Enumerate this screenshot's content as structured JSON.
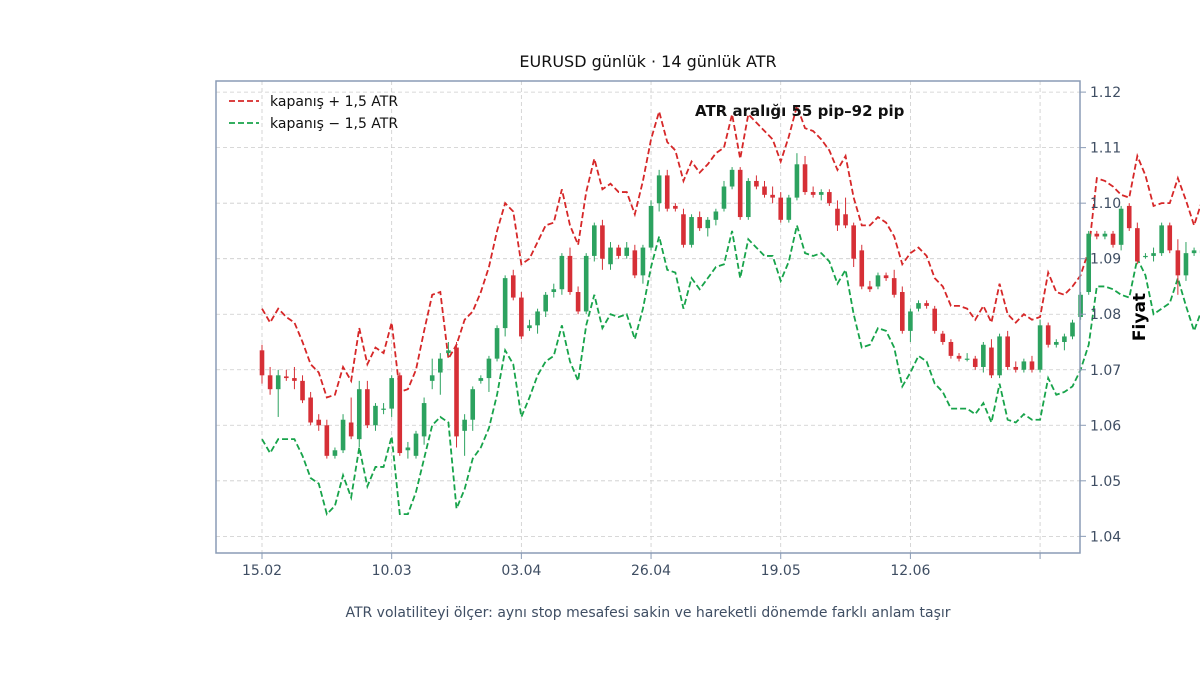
{
  "chart_data": {
    "type": "candlestick",
    "title": "EURUSD günlük · 14 günlük ATR",
    "ylabel": "Fiyat",
    "xlabel": "",
    "footnote": "ATR volatiliteyi ölçer: aynı stop mesafesi sakin ve hareketli dönemde farklı anlam taşır",
    "annotation": "ATR aralığı 55 pip–92 pip",
    "y_axis_position": "right",
    "ylim": [
      1.037,
      1.122
    ],
    "yticks": [
      1.04,
      1.05,
      1.06,
      1.07,
      1.08,
      1.09,
      1.1,
      1.11,
      1.12
    ],
    "ytick_labels": [
      "1.04",
      "1.05",
      "1.06",
      "1.07",
      "1.08",
      "1.09",
      "1.10",
      "1.11",
      "1.12"
    ],
    "xtick_indices": [
      0,
      16,
      32,
      48,
      64,
      80,
      96
    ],
    "xtick_labels": [
      "15.02",
      "10.03",
      "03.04",
      "26.04",
      "19.05",
      "12.06",
      ""
    ],
    "grid": true,
    "legend_position": "top-left",
    "colors": {
      "up": "#2ca25f",
      "down": "#d62f36",
      "upper": "#d62728",
      "lower": "#17a34a",
      "frame": "#8a9bb5"
    },
    "series": [
      {
        "name": "kapanış + 1,5 ATR",
        "color": "#d62728",
        "style": "dashed",
        "key": "upper"
      },
      {
        "name": "kapanış − 1,5 ATR",
        "color": "#17a34a",
        "style": "dashed",
        "key": "lower"
      }
    ],
    "ohlc": [
      [
        1.0735,
        1.0745,
        1.0675,
        1.069
      ],
      [
        1.069,
        1.0705,
        1.0655,
        1.0665
      ],
      [
        1.0665,
        1.07,
        1.0615,
        1.069
      ],
      [
        1.0688,
        1.07,
        1.068,
        1.0685
      ],
      [
        1.0685,
        1.0705,
        1.0665,
        1.068
      ],
      [
        1.068,
        1.069,
        1.064,
        1.0645
      ],
      [
        1.065,
        1.066,
        1.06,
        1.0605
      ],
      [
        1.061,
        1.062,
        1.059,
        1.06
      ],
      [
        1.06,
        1.061,
        1.054,
        1.0545
      ],
      [
        1.0545,
        1.056,
        1.054,
        1.0555
      ],
      [
        1.0555,
        1.062,
        1.055,
        1.061
      ],
      [
        1.0605,
        1.065,
        1.0575,
        1.058
      ],
      [
        1.0575,
        1.068,
        1.056,
        1.0665
      ],
      [
        1.0665,
        1.068,
        1.0595,
        1.06
      ],
      [
        1.06,
        1.064,
        1.059,
        1.0635
      ],
      [
        1.063,
        1.064,
        1.062,
        1.063
      ],
      [
        1.063,
        1.069,
        1.0615,
        1.0685
      ],
      [
        1.069,
        1.0695,
        1.0545,
        1.055
      ],
      [
        1.0555,
        1.057,
        1.054,
        1.056
      ],
      [
        1.0545,
        1.059,
        1.054,
        1.0585
      ],
      [
        1.058,
        1.065,
        1.0565,
        1.064
      ],
      [
        1.068,
        1.072,
        1.0665,
        1.069
      ],
      [
        1.0695,
        1.073,
        1.0655,
        1.072
      ],
      [
        1.073,
        1.075,
        1.0725,
        1.0735
      ],
      [
        1.074,
        1.075,
        1.056,
        1.058
      ],
      [
        1.059,
        1.062,
        1.0545,
        1.061
      ],
      [
        1.061,
        1.067,
        1.059,
        1.0665
      ],
      [
        1.068,
        1.069,
        1.0675,
        1.0685
      ],
      [
        1.0685,
        1.0725,
        1.066,
        1.072
      ],
      [
        1.072,
        1.078,
        1.0715,
        1.0775
      ],
      [
        1.0775,
        1.087,
        1.076,
        1.0865
      ],
      [
        1.087,
        1.088,
        1.0825,
        1.083
      ],
      [
        1.083,
        1.084,
        1.0755,
        1.076
      ],
      [
        1.0775,
        1.079,
        1.077,
        1.078
      ],
      [
        1.078,
        1.081,
        1.0765,
        1.0805
      ],
      [
        1.0805,
        1.084,
        1.0795,
        1.0835
      ],
      [
        1.084,
        1.0855,
        1.083,
        1.0845
      ],
      [
        1.0845,
        1.091,
        1.0835,
        1.0905
      ],
      [
        1.0905,
        1.092,
        1.0835,
        1.084
      ],
      [
        1.084,
        1.085,
        1.08,
        1.0805
      ],
      [
        1.0805,
        1.091,
        1.08,
        1.0905
      ],
      [
        1.0905,
        1.0965,
        1.0895,
        1.096
      ],
      [
        1.096,
        1.097,
        1.088,
        1.09
      ],
      [
        1.089,
        1.093,
        1.088,
        1.092
      ],
      [
        1.092,
        1.0925,
        1.09,
        1.0905
      ],
      [
        1.0905,
        1.093,
        1.09,
        1.092
      ],
      [
        1.0915,
        1.0925,
        1.0865,
        1.087
      ],
      [
        1.087,
        1.0925,
        1.0855,
        1.092
      ],
      [
        1.092,
        1.1005,
        1.0915,
        1.0995
      ],
      [
        1.1,
        1.106,
        1.0985,
        1.105
      ],
      [
        1.105,
        1.106,
        1.0985,
        1.099
      ],
      [
        1.0995,
        1.1,
        1.0985,
        1.099
      ],
      [
        1.098,
        1.099,
        1.092,
        1.0925
      ],
      [
        1.0925,
        1.098,
        1.092,
        1.0975
      ],
      [
        1.0975,
        1.0985,
        1.095,
        1.0955
      ],
      [
        1.0955,
        1.0975,
        1.094,
        1.097
      ],
      [
        1.097,
        1.099,
        1.096,
        1.0985
      ],
      [
        1.099,
        1.104,
        1.0985,
        1.103
      ],
      [
        1.103,
        1.1065,
        1.1025,
        1.106
      ],
      [
        1.106,
        1.1065,
        1.097,
        1.0975
      ],
      [
        1.0975,
        1.1045,
        1.097,
        1.104
      ],
      [
        1.104,
        1.105,
        1.1025,
        1.103
      ],
      [
        1.103,
        1.104,
        1.101,
        1.1015
      ],
      [
        1.1015,
        1.103,
        1.1,
        1.101
      ],
      [
        1.101,
        1.102,
        1.0965,
        1.097
      ],
      [
        1.097,
        1.1015,
        1.0965,
        1.101
      ],
      [
        1.101,
        1.109,
        1.1005,
        1.107
      ],
      [
        1.107,
        1.1085,
        1.1015,
        1.102
      ],
      [
        1.102,
        1.103,
        1.101,
        1.1015
      ],
      [
        1.1015,
        1.1025,
        1.1005,
        1.102
      ],
      [
        1.102,
        1.1025,
        1.0995,
        1.1
      ],
      [
        1.099,
        1.1005,
        1.095,
        1.096
      ],
      [
        1.098,
        1.101,
        1.0955,
        1.096
      ],
      [
        1.096,
        1.0965,
        1.0885,
        1.09
      ],
      [
        1.0915,
        1.0925,
        1.0845,
        1.085
      ],
      [
        1.085,
        1.086,
        1.084,
        1.0845
      ],
      [
        1.085,
        1.0875,
        1.0845,
        1.087
      ],
      [
        1.087,
        1.0875,
        1.086,
        1.0865
      ],
      [
        1.0865,
        1.088,
        1.083,
        1.0835
      ],
      [
        1.084,
        1.085,
        1.0765,
        1.077
      ],
      [
        1.077,
        1.081,
        1.075,
        1.0805
      ],
      [
        1.081,
        1.0825,
        1.0805,
        1.082
      ],
      [
        1.082,
        1.0825,
        1.081,
        1.0815
      ],
      [
        1.081,
        1.0815,
        1.0765,
        1.077
      ],
      [
        1.0765,
        1.077,
        1.0745,
        1.075
      ],
      [
        1.075,
        1.0755,
        1.072,
        1.0725
      ],
      [
        1.0725,
        1.073,
        1.0715,
        1.072
      ],
      [
        1.072,
        1.073,
        1.0715,
        1.072
      ],
      [
        1.072,
        1.0725,
        1.07,
        1.0705
      ],
      [
        1.0705,
        1.075,
        1.0695,
        1.0745
      ],
      [
        1.074,
        1.0755,
        1.0685,
        1.069
      ],
      [
        1.069,
        1.0765,
        1.0685,
        1.076
      ],
      [
        1.076,
        1.077,
        1.07,
        1.0705
      ],
      [
        1.0705,
        1.0715,
        1.0695,
        1.07
      ],
      [
        1.07,
        1.072,
        1.0695,
        1.0715
      ],
      [
        1.0715,
        1.0725,
        1.0695,
        1.07
      ],
      [
        1.07,
        1.079,
        1.0695,
        1.078
      ],
      [
        1.078,
        1.0785,
        1.074,
        1.0745
      ],
      [
        1.0745,
        1.0755,
        1.074,
        1.075
      ],
      [
        1.075,
        1.0765,
        1.0735,
        1.076
      ],
      [
        1.076,
        1.079,
        1.0755,
        1.0785
      ],
      [
        1.0795,
        1.084,
        1.079,
        1.0835
      ],
      [
        1.084,
        1.095,
        1.0835,
        1.0945
      ],
      [
        1.0945,
        1.095,
        1.0935,
        1.094
      ],
      [
        1.094,
        1.095,
        1.0935,
        1.0945
      ],
      [
        1.0945,
        1.095,
        1.092,
        1.0925
      ],
      [
        1.0925,
        1.0995,
        1.0915,
        1.099
      ],
      [
        1.0995,
        1.1,
        1.095,
        1.0955
      ],
      [
        1.0955,
        1.0965,
        1.089,
        1.0895
      ],
      [
        1.0905,
        1.091,
        1.09,
        1.0905
      ],
      [
        1.0905,
        1.092,
        1.0895,
        1.091
      ],
      [
        1.091,
        1.0965,
        1.0905,
        1.096
      ],
      [
        1.096,
        1.0965,
        1.091,
        1.0915
      ],
      [
        1.0915,
        1.0935,
        1.0835,
        1.087
      ],
      [
        1.087,
        1.093,
        1.086,
        1.091
      ],
      [
        1.091,
        1.092,
        1.0905,
        1.0915
      ],
      [
        1.091,
        1.0935,
        1.0905,
        1.0915
      ],
      [
        1.0915,
        1.092,
        1.088,
        1.0885
      ]
    ],
    "upper": [
      1.081,
      1.0785,
      1.081,
      1.0795,
      1.0785,
      1.075,
      1.071,
      1.0695,
      1.065,
      1.0655,
      1.0705,
      1.068,
      1.0775,
      1.071,
      1.074,
      1.073,
      1.0785,
      1.066,
      1.0665,
      1.07,
      1.077,
      1.0835,
      1.084,
      1.072,
      1.0745,
      1.079,
      1.0805,
      1.084,
      1.0885,
      1.095,
      1.1,
      1.0985,
      1.089,
      1.09,
      1.093,
      1.096,
      1.0965,
      1.1025,
      1.096,
      1.0925,
      1.102,
      1.108,
      1.1025,
      1.1035,
      1.102,
      1.102,
      1.098,
      1.104,
      1.1115,
      1.1165,
      1.111,
      1.1095,
      1.104,
      1.1075,
      1.1055,
      1.107,
      1.109,
      1.11,
      1.116,
      1.108,
      1.116,
      1.1145,
      1.113,
      1.1115,
      1.1075,
      1.112,
      1.1175,
      1.1135,
      1.113,
      1.1115,
      1.1095,
      1.106,
      1.1085,
      1.101,
      1.096,
      1.096,
      1.0975,
      1.0965,
      1.094,
      1.089,
      1.091,
      1.092,
      1.0905,
      1.0865,
      1.085,
      1.0815,
      1.0815,
      1.081,
      1.079,
      1.0815,
      1.0785,
      1.0855,
      1.08,
      1.0785,
      1.08,
      1.079,
      1.0795,
      1.0875,
      1.084,
      1.0835,
      1.085,
      1.087,
      1.0915,
      1.1045,
      1.104,
      1.103,
      1.1015,
      1.101,
      1.1085,
      1.105,
      1.0995,
      1.1,
      1.1,
      1.1045,
      1.1005,
      1.096,
      1.1005,
      1.1,
      1.1005,
      1.0975
    ],
    "lower": [
      1.0575,
      1.055,
      1.0575,
      1.0575,
      1.0575,
      1.0545,
      1.0505,
      1.0495,
      1.044,
      1.0455,
      1.051,
      1.047,
      1.056,
      1.049,
      1.0525,
      1.0525,
      1.058,
      1.044,
      1.044,
      1.048,
      1.054,
      1.06,
      1.0615,
      1.0605,
      1.045,
      1.0485,
      1.054,
      1.056,
      1.0595,
      1.0655,
      1.0735,
      1.071,
      1.0615,
      1.065,
      1.069,
      1.0715,
      1.0725,
      1.078,
      1.0715,
      1.068,
      1.078,
      1.0835,
      1.0775,
      1.08,
      1.0795,
      1.08,
      1.0755,
      1.081,
      1.0885,
      1.094,
      1.088,
      1.0875,
      1.081,
      1.0865,
      1.0845,
      1.0865,
      1.0885,
      1.089,
      1.095,
      1.0865,
      1.0935,
      1.092,
      1.0905,
      1.0905,
      1.086,
      1.0895,
      1.096,
      1.091,
      1.0905,
      1.091,
      1.0895,
      1.0855,
      1.088,
      1.08,
      1.074,
      1.0745,
      1.0775,
      1.077,
      1.074,
      1.067,
      1.0695,
      1.0725,
      1.0715,
      1.0675,
      1.066,
      1.063,
      1.063,
      1.063,
      1.062,
      1.064,
      1.0605,
      1.0675,
      1.061,
      1.0605,
      1.062,
      1.061,
      1.061,
      1.0685,
      1.0655,
      1.066,
      1.067,
      1.07,
      1.0745,
      1.085,
      1.085,
      1.0845,
      1.0835,
      1.083,
      1.09,
      1.087,
      1.08,
      1.081,
      1.082,
      1.0865,
      1.0815,
      1.077,
      1.081,
      1.0815,
      1.082,
      1.0795
    ]
  }
}
